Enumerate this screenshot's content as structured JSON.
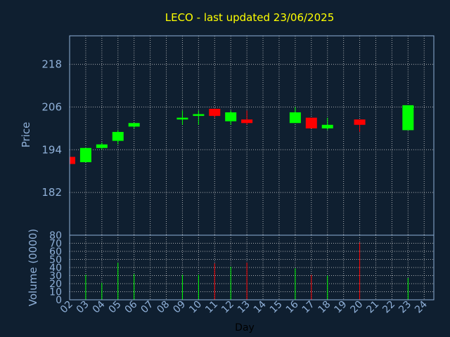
{
  "chart_data": {
    "type": "candlestick",
    "title": "LECO - last updated 23/06/2025",
    "xlabel": "Day",
    "x_tick_labels": [
      "02",
      "03",
      "04",
      "05",
      "06",
      "07",
      "08",
      "09",
      "10",
      "11",
      "12",
      "13",
      "14",
      "15",
      "16",
      "17",
      "18",
      "19",
      "20",
      "21",
      "22",
      "23",
      "24"
    ],
    "price": {
      "ylabel": "Price",
      "ylim": [
        170,
        226
      ],
      "y_ticks": [
        182,
        194,
        206,
        218
      ],
      "candles": [
        {
          "day": "02",
          "open": 192.0,
          "high": 192.0,
          "low": 190.0,
          "close": 190.0
        },
        {
          "day": "03",
          "open": 190.5,
          "high": 194.5,
          "low": 190.5,
          "close": 194.5
        },
        {
          "day": "04",
          "open": 194.5,
          "high": 196.0,
          "low": 194.0,
          "close": 195.5
        },
        {
          "day": "05",
          "open": 196.5,
          "high": 199.5,
          "low": 195.5,
          "close": 199.0
        },
        {
          "day": "06",
          "open": 200.5,
          "high": 201.5,
          "low": 200.0,
          "close": 201.5
        },
        {
          "day": "09",
          "open": 202.5,
          "high": 205.0,
          "low": 201.0,
          "close": 203.0
        },
        {
          "day": "10",
          "open": 203.5,
          "high": 205.0,
          "low": 201.0,
          "close": 204.0
        },
        {
          "day": "11",
          "open": 205.5,
          "high": 205.5,
          "low": 203.0,
          "close": 203.5
        },
        {
          "day": "12",
          "open": 202.0,
          "high": 205.0,
          "low": 201.0,
          "close": 204.5
        },
        {
          "day": "13",
          "open": 202.5,
          "high": 205.0,
          "low": 201.0,
          "close": 201.5
        },
        {
          "day": "16",
          "open": 201.5,
          "high": 206.0,
          "low": 201.5,
          "close": 204.5
        },
        {
          "day": "17",
          "open": 203.0,
          "high": 203.0,
          "low": 200.0,
          "close": 200.0
        },
        {
          "day": "18",
          "open": 200.0,
          "high": 203.0,
          "low": 199.5,
          "close": 201.0
        },
        {
          "day": "20",
          "open": 202.5,
          "high": 202.5,
          "low": 199.0,
          "close": 201.0
        },
        {
          "day": "23",
          "open": 199.5,
          "high": 206.5,
          "low": 199.5,
          "close": 206.5
        }
      ]
    },
    "volume": {
      "ylabel": "Volume (0000)",
      "ylim": [
        0,
        80
      ],
      "y_ticks": [
        0,
        10,
        20,
        30,
        40,
        50,
        60,
        70,
        80
      ],
      "bars": [
        {
          "day": "03",
          "value": 31,
          "color": "green"
        },
        {
          "day": "04",
          "value": 21,
          "color": "green"
        },
        {
          "day": "05",
          "value": 46,
          "color": "green"
        },
        {
          "day": "06",
          "value": 32,
          "color": "green"
        },
        {
          "day": "09",
          "value": 31,
          "color": "green"
        },
        {
          "day": "10",
          "value": 31,
          "color": "green"
        },
        {
          "day": "11",
          "value": 45,
          "color": "red"
        },
        {
          "day": "12",
          "value": 41,
          "color": "green"
        },
        {
          "day": "13",
          "value": 46,
          "color": "red"
        },
        {
          "day": "16",
          "value": 39,
          "color": "green"
        },
        {
          "day": "17",
          "value": 31,
          "color": "red"
        },
        {
          "day": "18",
          "value": 30,
          "color": "green"
        },
        {
          "day": "20",
          "value": 71,
          "color": "red"
        },
        {
          "day": "23",
          "value": 27,
          "color": "green"
        }
      ]
    },
    "grid": true
  },
  "colors": {
    "background": "#0f1f30",
    "title": "#ffff00",
    "axis_text": "#8fb0d8",
    "up": "#00ff00",
    "down": "#ff0000",
    "grid": "#d0d0d0"
  }
}
